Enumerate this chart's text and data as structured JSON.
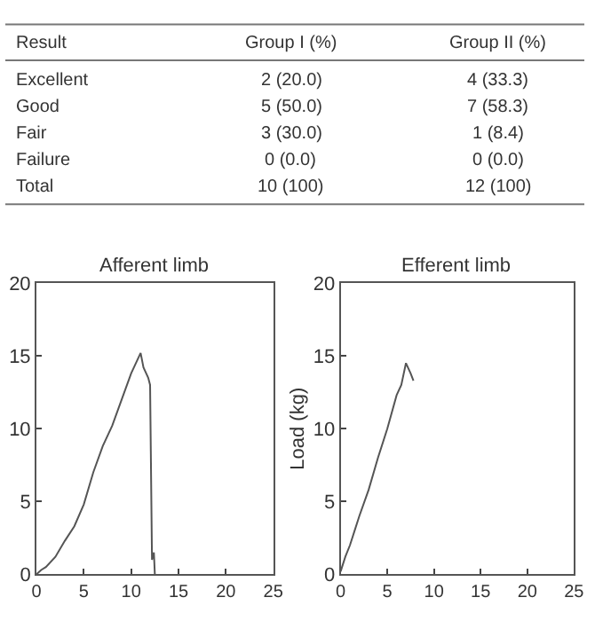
{
  "chart_data": [
    {
      "type": "other",
      "annotations": [
        "Result",
        "Group I (%)",
        "Group II (%)",
        "Excellent",
        "2 (20.0)",
        "4 (33.3)",
        "Good",
        "5 (50.0)",
        "7 (58.3)",
        "Fair",
        "3 (30.0)",
        "1 (8.4)",
        "Failure",
        "0 (0.0)",
        "0 (0.0)",
        "Total",
        "10 (100)",
        "12 (100)"
      ]
    },
    {
      "type": "line",
      "title": "Afferent limb",
      "xlim": [
        0,
        25
      ],
      "xticks": [
        0,
        5,
        10,
        15,
        20,
        25
      ],
      "ylim": [
        0,
        20
      ],
      "yticks": [
        0,
        5,
        10,
        15,
        20
      ],
      "grid": false,
      "legend": false,
      "series": [
        {
          "color": "#555555",
          "x": [
            0,
            0.5,
            1,
            2,
            3,
            4,
            5,
            6,
            7,
            8,
            9,
            10,
            10.5,
            11,
            11.3,
            11.8,
            12,
            12.2,
            12.4,
            12.5
          ],
          "values": [
            0,
            0.3,
            0.5,
            1.2,
            2.3,
            3.3,
            4.8,
            7,
            8.8,
            10.2,
            12,
            13.8,
            14.5,
            15.2,
            14.2,
            13.5,
            13,
            1,
            1.5,
            0
          ]
        }
      ]
    },
    {
      "type": "line",
      "title": "Efferent limb",
      "ylabel": "Load (kg)",
      "xlim": [
        0,
        25
      ],
      "xticks": [
        0,
        5,
        10,
        15,
        20,
        25
      ],
      "ylim": [
        0,
        20
      ],
      "yticks": [
        0,
        5,
        10,
        15,
        20
      ],
      "grid": false,
      "legend": false,
      "series": [
        {
          "color": "#555555",
          "x": [
            0,
            0.5,
            1,
            1.5,
            2,
            3,
            4,
            5,
            6,
            6.5,
            7,
            7.5,
            7.8
          ],
          "values": [
            0.2,
            1.2,
            2,
            3,
            4,
            5.8,
            8,
            10,
            12.3,
            13,
            14.5,
            13.8,
            13.3
          ]
        }
      ]
    }
  ]
}
